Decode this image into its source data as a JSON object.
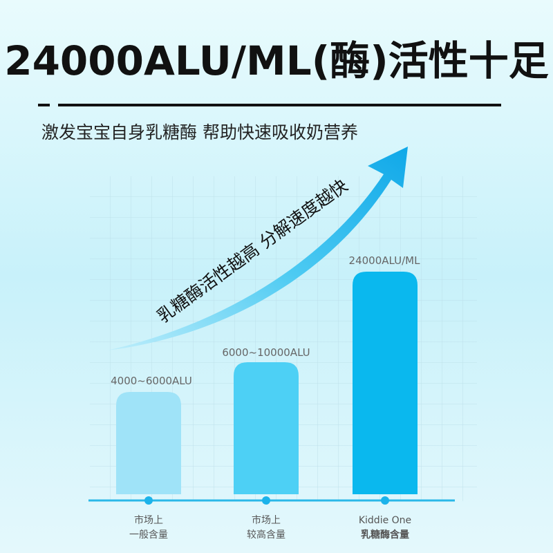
{
  "header": {
    "title": "24000ALU/ML(酶)活性十足",
    "subtitle": "激发宝宝自身乳糖酶 帮助快速吸收奶营养"
  },
  "arrow_text": "乳糖酶活性越高 分解速度越快",
  "bars": [
    {
      "value_label": "4000~6000ALU",
      "category": [
        "市场上",
        "一般含量"
      ]
    },
    {
      "value_label": "6000~10000ALU",
      "category": [
        "市场上",
        "较高含量"
      ]
    },
    {
      "value_label": "24000ALU/ML",
      "category": [
        "Kiddie One",
        "乳糖酶含量"
      ]
    }
  ]
}
